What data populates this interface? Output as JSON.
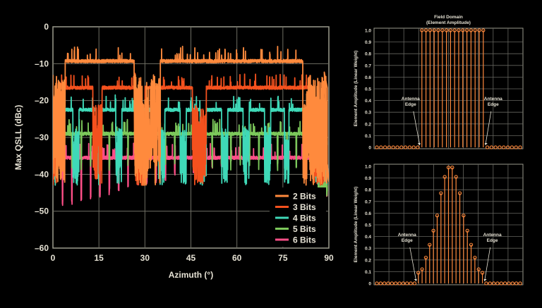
{
  "chart_data": [
    {
      "type": "line",
      "xlabel": "Azimuth (°)",
      "ylabel": "Max QSLL (dBc)",
      "xlim": [
        0,
        90
      ],
      "ylim": [
        -60,
        0
      ],
      "xticks": [
        "0",
        "15",
        "30",
        "45",
        "60",
        "75",
        "90"
      ],
      "yticks": [
        "0",
        "–10",
        "–20",
        "–30",
        "–40",
        "–50",
        "–60"
      ],
      "grid": true,
      "legend_position": "bottom-right",
      "series": [
        {
          "name": "2 Bits",
          "color": "#ff8a3d",
          "base": -9.3,
          "plateaus": [
            [
              4,
              26.5
            ],
            [
              35,
              81.5
            ]
          ]
        },
        {
          "name": "3 Bits",
          "color": "#f4511e",
          "base": -16.5,
          "plateaus": [
            [
              2,
              13
            ],
            [
              16,
              27
            ],
            [
              30,
              45.5
            ],
            [
              50,
              84.5
            ]
          ]
        },
        {
          "name": "4 Bits",
          "color": "#3fd9b8",
          "base": -22.5,
          "plateaus": [
            [
              1.5,
              6.5
            ],
            [
              8.5,
              14
            ],
            [
              15.5,
              20.5
            ],
            [
              22.5,
              27.5
            ],
            [
              29.5,
              34.5
            ],
            [
              36.5,
              41.5
            ],
            [
              43.5,
              48
            ],
            [
              50,
              55
            ],
            [
              57,
              62
            ],
            [
              64,
              69
            ],
            [
              71,
              75.5
            ],
            [
              77,
              85.5
            ]
          ]
        },
        {
          "name": "5 Bits",
          "color": "#7cc85b",
          "base": -29,
          "plateaus": [
            [
              0,
              86.5
            ]
          ]
        },
        {
          "name": "6 Bits",
          "color": "#ff4f88",
          "base": -35.5,
          "plateaus": [
            [
              0,
              89
            ]
          ]
        }
      ]
    },
    {
      "type": "stem",
      "title": "Field Domain\n(Element Amplitude)",
      "ylabel": "Element Amplitude (Linear Weight)",
      "ylim": [
        0,
        1.0
      ],
      "yticks": [
        "1.0",
        "0.9",
        "0.8",
        "0.7",
        "0.6",
        "0.5",
        "0.4",
        "0.3",
        "0.2",
        "0.1",
        "0"
      ],
      "annotations": [
        "Antenna\nEdge",
        "Antenna\nEdge"
      ],
      "values": [
        0,
        0,
        0,
        0,
        0,
        0,
        0,
        0,
        0,
        0,
        0,
        1,
        1,
        1,
        1,
        1,
        1,
        1,
        1,
        1,
        1,
        1,
        1,
        1,
        1,
        1,
        1,
        0,
        0,
        0,
        0,
        0,
        0,
        0,
        0,
        0
      ]
    },
    {
      "type": "stem",
      "ylabel": "Element Amplitude (Linear Weight)",
      "ylim": [
        0,
        1.0
      ],
      "yticks": [
        "1.0",
        "0.9",
        "0.8",
        "0.7",
        "0.6",
        "0.5",
        "0.4",
        "0.3",
        "0.2",
        "0.1",
        "0"
      ],
      "annotations": [
        "Antenna\nEdge",
        "Antenna\nEdge"
      ],
      "values": [
        0,
        0,
        0,
        0,
        0,
        0,
        0,
        0,
        0,
        0,
        0,
        0.09,
        0.12,
        0.22,
        0.33,
        0.45,
        0.58,
        0.77,
        0.91,
        0.99,
        0.99,
        0.91,
        0.77,
        0.58,
        0.45,
        0.33,
        0.22,
        0.12,
        0.09,
        0,
        0,
        0,
        0,
        0,
        0,
        0,
        0,
        0,
        0
      ]
    }
  ]
}
